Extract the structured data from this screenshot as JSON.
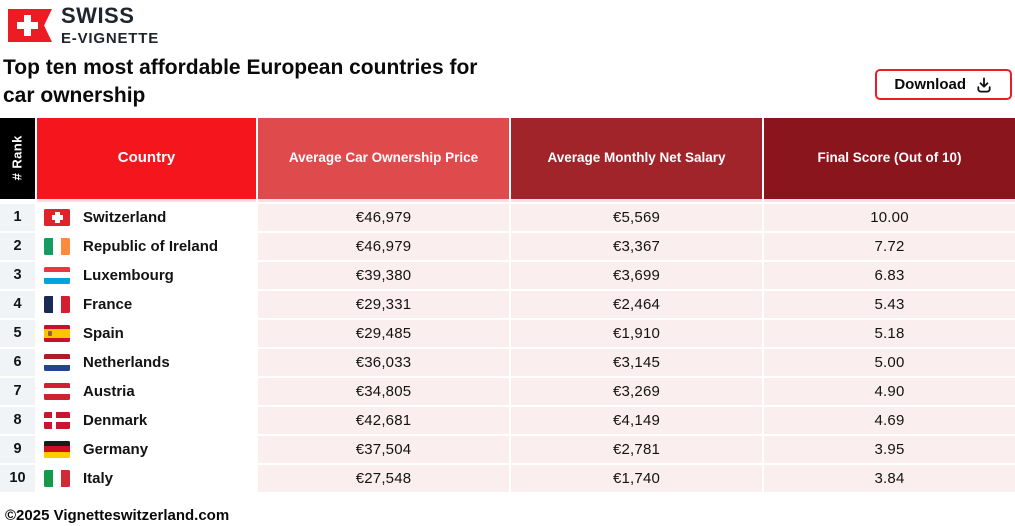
{
  "brand": {
    "line1": "SWISS",
    "line2": "E-VIGNETTE",
    "logo_icon": "swiss-vignette-flag-icon"
  },
  "page": {
    "title_line1": "Top ten most affordable European countries for",
    "title_line2": "car ownership",
    "download_label": "Download",
    "download_icon": "download-tray-icon",
    "footer": "©2025 Vignetteswitzerland.com"
  },
  "colors": {
    "brand_red": "#ED1C24",
    "header_rank_bg": "#000000",
    "header_country_bg": "#F5161D",
    "header_price_bg": "#DF4A4D",
    "header_salary_bg": "#A2242B",
    "header_score_bg": "#8A151C",
    "rank_cell_bg": "#F0F4F7",
    "country_cell_bg": "#FFFFFF",
    "value_cell_bg": "#FBEEEF",
    "header_divider": "#FAE0E2"
  },
  "table": {
    "columns": [
      {
        "id": "rank",
        "label": "# Rank",
        "bg": "#000000"
      },
      {
        "id": "country",
        "label": "Country",
        "bg": "#F5161D"
      },
      {
        "id": "price",
        "label": "Average Car Ownership Price",
        "bg": "#DF4A4D"
      },
      {
        "id": "salary",
        "label": "Average Monthly Net Salary",
        "bg": "#A2242B"
      },
      {
        "id": "score",
        "label": "Final Score (Out of 10)",
        "bg": "#8A151C"
      }
    ],
    "rows": [
      {
        "rank": "1",
        "country": "Switzerland",
        "price": "€46,979",
        "salary": "€5,569",
        "score": "10.00",
        "flag": {
          "kind": "swiss-cross",
          "colors": [
            "#E0232B"
          ]
        }
      },
      {
        "rank": "2",
        "country": "Republic of Ireland",
        "price": "€46,979",
        "salary": "€3,367",
        "score": "7.72",
        "flag": {
          "kind": "vertical",
          "colors": [
            "#169B62",
            "#FFFFFF",
            "#FF8A3D"
          ]
        }
      },
      {
        "rank": "3",
        "country": "Luxembourg",
        "price": "€39,380",
        "salary": "€3,699",
        "score": "6.83",
        "flag": {
          "kind": "horizontal",
          "colors": [
            "#EF3340",
            "#FFFFFF",
            "#00A3E0"
          ]
        }
      },
      {
        "rank": "4",
        "country": "France",
        "price": "€29,331",
        "salary": "€2,464",
        "score": "5.43",
        "flag": {
          "kind": "vertical",
          "colors": [
            "#1B2A55",
            "#FFFFFF",
            "#D51F30"
          ]
        }
      },
      {
        "rank": "5",
        "country": "Spain",
        "price": "€29,485",
        "salary": "€1,910",
        "score": "5.18",
        "flag": {
          "kind": "spain",
          "colors": [
            "#C8102E",
            "#FFC400",
            "#C8102E"
          ],
          "emblem": "#9A5B43"
        }
      },
      {
        "rank": "6",
        "country": "Netherlands",
        "price": "€36,033",
        "salary": "€3,145",
        "score": "5.00",
        "flag": {
          "kind": "horizontal",
          "colors": [
            "#AE1C28",
            "#FFFFFF",
            "#21468B"
          ]
        }
      },
      {
        "rank": "7",
        "country": "Austria",
        "price": "€34,805",
        "salary": "€3,269",
        "score": "4.90",
        "flag": {
          "kind": "horizontal",
          "colors": [
            "#D21F31",
            "#FFFFFF",
            "#D21F31"
          ]
        }
      },
      {
        "rank": "8",
        "country": "Denmark",
        "price": "€42,681",
        "salary": "€4,149",
        "score": "4.69",
        "flag": {
          "kind": "nordic-cross",
          "colors": [
            "#CA1530"
          ]
        }
      },
      {
        "rank": "9",
        "country": "Germany",
        "price": "€37,504",
        "salary": "€2,781",
        "score": "3.95",
        "flag": {
          "kind": "horizontal",
          "colors": [
            "#1A1A1A",
            "#D00C1E",
            "#FFCC00"
          ]
        }
      },
      {
        "rank": "10",
        "country": "Italy",
        "price": "€27,548",
        "salary": "€1,740",
        "score": "3.84",
        "flag": {
          "kind": "vertical",
          "colors": [
            "#149A49",
            "#FFFFFF",
            "#CE2B37"
          ]
        }
      }
    ]
  }
}
